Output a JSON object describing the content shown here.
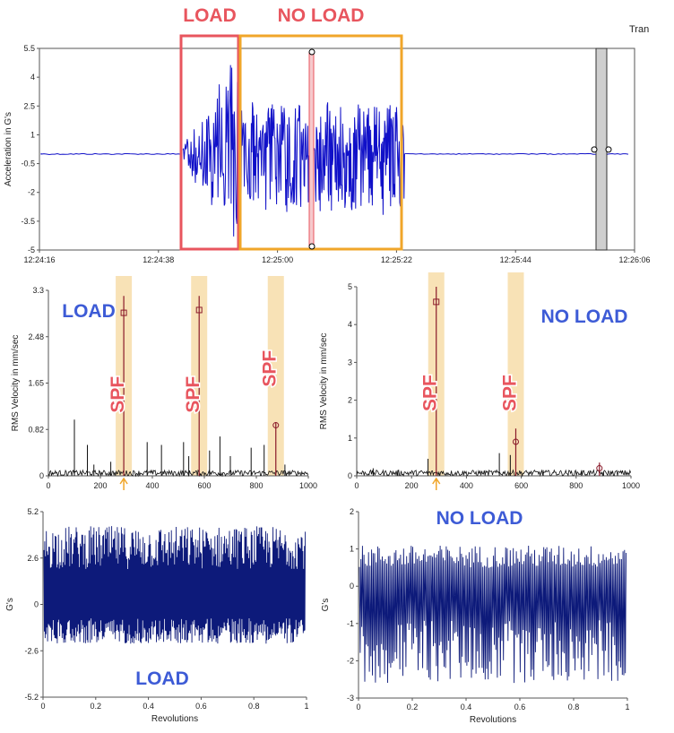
{
  "header": {
    "title_fragment": "Tran"
  },
  "colors": {
    "signal": "#1010c8",
    "dark_signal": "#0d1a7a",
    "load_box": "#e8555e",
    "noload_box": "#f0a62a",
    "band": "#f8e2b6",
    "cursor": "#e8555e",
    "spectrum": "#111111",
    "marker": "#8a1a2a"
  },
  "chart_data": [
    {
      "id": "waveform",
      "type": "line",
      "ylabel": "Acceleration in G's",
      "xlabel": "",
      "x_ticks": [
        "12:24:16",
        "12:24:38",
        "12:25:00",
        "12:25:22",
        "12:25:44",
        "12:26:06"
      ],
      "y_ticks": [
        5.5,
        4,
        2.5,
        1,
        -0.5,
        -2,
        -3.5,
        -5
      ],
      "ylim": [
        -5,
        5.5
      ],
      "baseline": 0,
      "annotations": [
        {
          "label": "LOAD",
          "color": "#e8555e"
        },
        {
          "label": "NO LOAD",
          "color": "#f0a62a"
        }
      ]
    },
    {
      "id": "spectrum_load",
      "type": "line",
      "ylabel": "RMS Velocity in mm/sec",
      "xlabel": "",
      "ylim": [
        0,
        3.3
      ],
      "xlim": [
        0,
        1000
      ],
      "y_ticks": [
        "3.3",
        "2.48",
        "1.65",
        "0.82",
        "0"
      ],
      "x_ticks": [
        "0",
        "200",
        "400",
        "600",
        "800",
        "1000"
      ],
      "title_label": "LOAD",
      "bands": [
        {
          "center": 290,
          "label": "SPF"
        },
        {
          "center": 580,
          "label": "SPF"
        },
        {
          "center": 875,
          "label": "SPF"
        }
      ],
      "peaks": [
        {
          "x": 290,
          "y": 3.2
        },
        {
          "x": 580,
          "y": 3.2
        },
        {
          "x": 875,
          "y": 0.95
        }
      ],
      "markers": [
        {
          "x": 290,
          "y": 2.9,
          "shape": "square"
        },
        {
          "x": 580,
          "y": 2.95,
          "shape": "square"
        },
        {
          "x": 875,
          "y": 0.9,
          "shape": "circle"
        }
      ],
      "arrow_x": 290
    },
    {
      "id": "spectrum_noload",
      "type": "line",
      "ylabel": "RMS Velocity in mm/sec",
      "xlabel": "",
      "ylim": [
        0,
        5
      ],
      "xlim": [
        0,
        1000
      ],
      "y_ticks": [
        "5",
        "4",
        "3",
        "2",
        "1",
        "0"
      ],
      "x_ticks": [
        "0",
        "200",
        "400",
        "600",
        "800",
        "1000"
      ],
      "title_label": "NO LOAD",
      "bands": [
        {
          "center": 290,
          "label": "SPF"
        },
        {
          "center": 580,
          "label": "SPF"
        }
      ],
      "peaks": [
        {
          "x": 290,
          "y": 5.0
        },
        {
          "x": 580,
          "y": 1.25
        },
        {
          "x": 885,
          "y": 0.35
        }
      ],
      "markers": [
        {
          "x": 290,
          "y": 4.6,
          "shape": "square"
        },
        {
          "x": 580,
          "y": 0.9,
          "shape": "circle"
        },
        {
          "x": 885,
          "y": 0.2,
          "shape": "circle"
        }
      ],
      "arrow_x": 290
    },
    {
      "id": "revolutions_load",
      "type": "line",
      "ylabel": "G's",
      "xlabel": "Revolutions",
      "ylim": [
        -5.2,
        5.2
      ],
      "xlim": [
        0,
        1
      ],
      "y_ticks": [
        "5.2",
        "2.6",
        "0",
        "-2.6",
        "-5.2"
      ],
      "x_ticks": [
        "0",
        "0.2",
        "0.4",
        "0.6",
        "0.8",
        "1"
      ],
      "title_label": "LOAD",
      "amplitude": [
        -2.2,
        4.4
      ]
    },
    {
      "id": "revolutions_noload",
      "type": "line",
      "ylabel": "G's",
      "xlabel": "Revolutions",
      "ylim": [
        -3,
        2
      ],
      "xlim": [
        0,
        1
      ],
      "y_ticks": [
        "2",
        "1",
        "0",
        "-1",
        "-2",
        "-3"
      ],
      "x_ticks": [
        "0",
        "0.2",
        "0.4",
        "0.6",
        "0.8",
        "1"
      ],
      "title_label": "NO LOAD",
      "amplitude": [
        -2.6,
        1.1
      ]
    }
  ]
}
